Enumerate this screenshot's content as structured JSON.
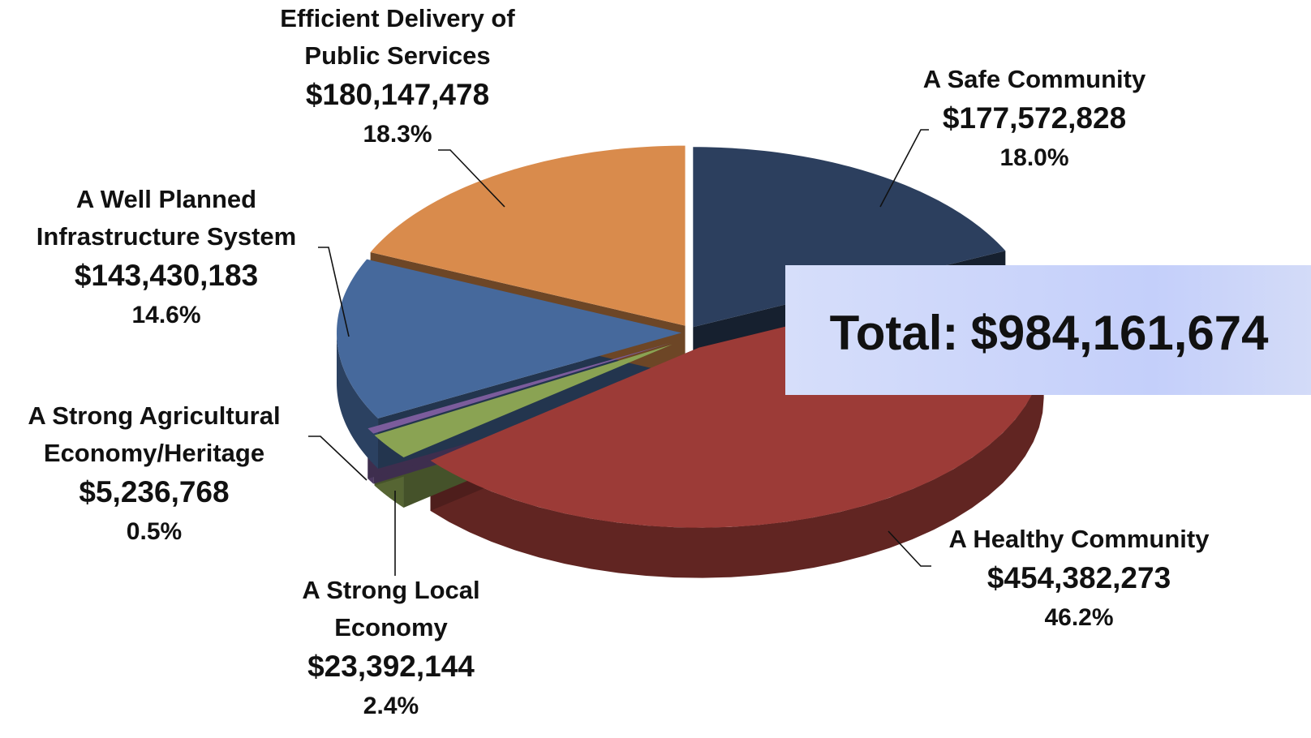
{
  "chart_data": {
    "type": "pie",
    "categories": [
      [
        "A Safe Community"
      ],
      [
        "A Healthy Community"
      ],
      [
        "A Strong Local",
        "Economy"
      ],
      [
        "A Strong Agricultural",
        "Economy/Heritage"
      ],
      [
        "A Well Planned",
        "Infrastructure System"
      ],
      [
        "Efficient Delivery of",
        "Public Services"
      ]
    ],
    "values": [
      177572828,
      454382273,
      23392144,
      5236768,
      143430183,
      180147478
    ],
    "value_labels": [
      "$177,572,828",
      "$454,382,273",
      "$23,392,144",
      "$5,236,768",
      "$143,430,183",
      "$180,147,478"
    ],
    "percent_labels": [
      "18.0%",
      "46.2%",
      "2.4%",
      "0.5%",
      "14.6%",
      "18.3%"
    ],
    "colors": [
      "#2c3f5e",
      "#9c3b37",
      "#8aa353",
      "#7b5c9c",
      "#46699c",
      "#d98b4c"
    ],
    "total": {
      "label": "Total:",
      "value": 984161674,
      "value_label": "$984,161,674"
    }
  }
}
